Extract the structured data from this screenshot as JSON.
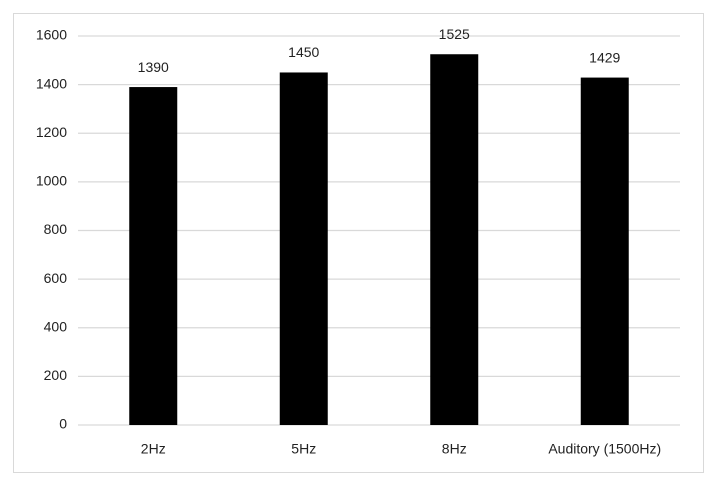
{
  "chart_data": {
    "type": "bar",
    "categories": [
      "2Hz",
      "5Hz",
      "8Hz",
      "Auditory (1500Hz)"
    ],
    "values": [
      1390,
      1450,
      1525,
      1429
    ],
    "color": "#000000",
    "ylim": [
      0,
      1600
    ],
    "yticks": [
      0,
      200,
      400,
      600,
      800,
      1000,
      1200,
      1400,
      1600
    ],
    "grid": true
  }
}
